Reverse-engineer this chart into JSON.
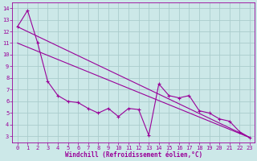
{
  "xlabel": "Windchill (Refroidissement éolien,°C)",
  "bg_color": "#cce8e8",
  "grid_color": "#aacccc",
  "line_color": "#990099",
  "xlim_min": -0.5,
  "xlim_max": 23.5,
  "ylim_min": 2.5,
  "ylim_max": 14.5,
  "xticks": [
    0,
    1,
    2,
    3,
    4,
    5,
    6,
    7,
    8,
    9,
    10,
    11,
    12,
    13,
    14,
    15,
    16,
    17,
    18,
    19,
    20,
    21,
    22,
    23
  ],
  "yticks": [
    3,
    4,
    5,
    6,
    7,
    8,
    9,
    10,
    11,
    12,
    13,
    14
  ],
  "series_x": [
    0,
    1,
    2,
    3,
    4,
    5,
    6,
    7,
    8,
    9,
    10,
    11,
    12,
    13,
    14,
    15,
    16,
    17,
    18,
    19,
    20,
    21,
    22,
    23
  ],
  "series_y": [
    12.4,
    13.8,
    11.0,
    7.7,
    6.5,
    6.0,
    5.9,
    5.4,
    5.0,
    5.4,
    4.7,
    5.4,
    5.3,
    3.1,
    7.5,
    6.5,
    6.3,
    6.5,
    5.2,
    5.0,
    4.5,
    4.3,
    3.4,
    2.9
  ],
  "trend1_x": [
    0,
    23
  ],
  "trend1_y": [
    12.4,
    2.9
  ],
  "trend2_x": [
    0,
    23
  ],
  "trend2_y": [
    11.0,
    2.9
  ],
  "tick_fontsize": 5,
  "xlabel_fontsize": 5.5,
  "linewidth": 0.8,
  "marker_size": 3
}
